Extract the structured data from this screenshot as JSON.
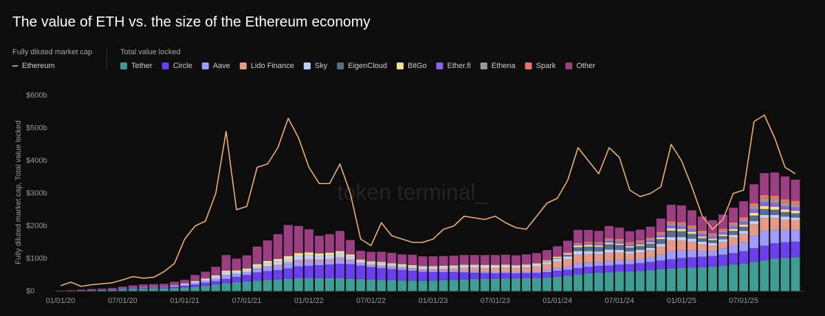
{
  "chart_data": {
    "type": "bar",
    "stacked": true,
    "title": "The value of ETH vs. the size of the Ethereum economy",
    "legend_titles": [
      "Fully diluted market cap",
      "Total value locked"
    ],
    "y_label": "Fully diluted market cap, Total value locked",
    "watermark": "token terminal_",
    "grid": false,
    "ylim": [
      0,
      600
    ],
    "yticks": [
      {
        "value": 0,
        "label": "$0"
      },
      {
        "value": 100,
        "label": "$100b"
      },
      {
        "value": 200,
        "label": "$200b"
      },
      {
        "value": 300,
        "label": "$300b"
      },
      {
        "value": 400,
        "label": "$400b"
      },
      {
        "value": 500,
        "label": "$500b"
      },
      {
        "value": 600,
        "label": "$600b"
      }
    ],
    "categories": [
      "01/01/20",
      null,
      null,
      null,
      null,
      null,
      "07/01/20",
      null,
      null,
      null,
      null,
      null,
      "01/01/21",
      null,
      null,
      null,
      null,
      null,
      "07/01/21",
      null,
      null,
      null,
      null,
      null,
      "01/01/22",
      null,
      null,
      null,
      null,
      null,
      "07/01/22",
      null,
      null,
      null,
      null,
      null,
      "01/01/23",
      null,
      null,
      null,
      null,
      null,
      "07/01/23",
      null,
      null,
      null,
      null,
      null,
      "01/01/24",
      null,
      null,
      null,
      null,
      null,
      "07/01/24",
      null,
      null,
      null,
      null,
      null,
      "01/01/25",
      null,
      null,
      null,
      null,
      null,
      "07/01/25",
      null,
      null,
      null,
      null,
      null
    ],
    "series": [
      {
        "name": "Tether",
        "color": "#3f9d93",
        "values": [
          1,
          1,
          2,
          3,
          4,
          5,
          6,
          7,
          8,
          9,
          9,
          10,
          12,
          14,
          17,
          20,
          25,
          28,
          30,
          33,
          35,
          36,
          38,
          40,
          40,
          40,
          40,
          40,
          38,
          37,
          36,
          35,
          34,
          33,
          33,
          32,
          33,
          34,
          35,
          36,
          37,
          38,
          38,
          39,
          39,
          40,
          40,
          42,
          45,
          48,
          52,
          55,
          57,
          58,
          60,
          60,
          62,
          65,
          68,
          70,
          72,
          73,
          74,
          75,
          78,
          82,
          85,
          90,
          95,
          100,
          102,
          104
        ]
      },
      {
        "name": "Circle",
        "color": "#6b3ff0",
        "values": [
          0,
          0,
          1,
          1,
          1,
          1,
          2,
          3,
          3,
          3,
          3,
          4,
          5,
          7,
          9,
          11,
          13,
          16,
          20,
          25,
          27,
          29,
          32,
          36,
          38,
          40,
          42,
          44,
          45,
          42,
          38,
          36,
          34,
          32,
          30,
          28,
          26,
          25,
          24,
          22,
          20,
          18,
          17,
          17,
          16,
          16,
          16,
          17,
          18,
          18,
          19,
          20,
          21,
          21,
          22,
          23,
          24,
          25,
          26,
          28,
          30,
          31,
          32,
          33,
          34,
          35,
          38,
          42,
          45,
          47,
          48,
          48
        ]
      },
      {
        "name": "Aave",
        "color": "#a09cff",
        "values": [
          0,
          0,
          0,
          0,
          0,
          0,
          0,
          0,
          1,
          1,
          1,
          2,
          3,
          5,
          6,
          8,
          10,
          8,
          8,
          10,
          12,
          13,
          14,
          15,
          15,
          13,
          13,
          14,
          11,
          6,
          6,
          6,
          6,
          6,
          5,
          5,
          5,
          5,
          5,
          6,
          6,
          5,
          5,
          5,
          5,
          5,
          6,
          7,
          8,
          10,
          14,
          13,
          12,
          14,
          13,
          12,
          13,
          14,
          18,
          25,
          24,
          22,
          18,
          16,
          20,
          24,
          28,
          38,
          45,
          42,
          38,
          36
        ]
      },
      {
        "name": "Lido Finance",
        "color": "#e59a86",
        "values": [
          0,
          0,
          0,
          0,
          0,
          0,
          0,
          0,
          0,
          0,
          0,
          0,
          0,
          0,
          0,
          0,
          1,
          1,
          1,
          2,
          3,
          4,
          5,
          6,
          6,
          5,
          5,
          6,
          4,
          2,
          2,
          3,
          3,
          3,
          3,
          3,
          4,
          5,
          6,
          8,
          9,
          10,
          11,
          11,
          11,
          12,
          14,
          17,
          20,
          23,
          28,
          26,
          24,
          26,
          24,
          20,
          21,
          22,
          25,
          33,
          30,
          26,
          20,
          17,
          19,
          24,
          26,
          36,
          40,
          36,
          32,
          30
        ]
      },
      {
        "name": "Sky",
        "color": "#bfd2ff",
        "values": [
          0,
          0,
          0,
          0,
          0,
          0,
          1,
          1,
          1,
          1,
          1,
          2,
          3,
          4,
          4,
          6,
          8,
          6,
          6,
          7,
          9,
          10,
          11,
          12,
          12,
          11,
          11,
          12,
          9,
          6,
          6,
          6,
          6,
          6,
          6,
          6,
          6,
          6,
          6,
          6,
          6,
          6,
          6,
          6,
          6,
          6,
          6,
          7,
          8,
          8,
          10,
          9,
          8,
          9,
          8,
          7,
          7,
          7,
          8,
          10,
          10,
          9,
          8,
          7,
          8,
          8,
          8,
          9,
          9,
          9,
          9,
          8
        ]
      },
      {
        "name": "EigenCloud",
        "color": "#5a6d8c",
        "values": [
          0,
          0,
          0,
          0,
          0,
          0,
          0,
          0,
          0,
          0,
          0,
          0,
          0,
          0,
          0,
          0,
          0,
          0,
          0,
          0,
          0,
          0,
          0,
          0,
          0,
          0,
          0,
          0,
          0,
          0,
          0,
          0,
          0,
          0,
          0,
          0,
          0,
          0,
          0,
          0,
          0,
          0,
          0,
          0,
          0,
          0,
          0,
          1,
          2,
          5,
          12,
          14,
          14,
          16,
          15,
          12,
          12,
          13,
          15,
          20,
          18,
          15,
          11,
          9,
          10,
          12,
          13,
          17,
          18,
          16,
          14,
          13
        ]
      },
      {
        "name": "BitGo",
        "color": "#f3e48a",
        "values": [
          0,
          0,
          0,
          0,
          0,
          0,
          0,
          0,
          0,
          0,
          0,
          0,
          1,
          2,
          3,
          4,
          6,
          5,
          5,
          6,
          7,
          7,
          8,
          8,
          8,
          7,
          7,
          7,
          6,
          4,
          4,
          4,
          3,
          3,
          3,
          3,
          3,
          3,
          3,
          3,
          3,
          3,
          3,
          3,
          2,
          2,
          3,
          3,
          4,
          4,
          5,
          5,
          4,
          5,
          4,
          4,
          4,
          4,
          5,
          7,
          7,
          6,
          5,
          4,
          5,
          6,
          6,
          8,
          9,
          9,
          8,
          8
        ]
      },
      {
        "name": "Ether.fi",
        "color": "#8d62e6",
        "values": [
          0,
          0,
          0,
          0,
          0,
          0,
          0,
          0,
          0,
          0,
          0,
          0,
          0,
          0,
          0,
          0,
          0,
          0,
          0,
          0,
          0,
          0,
          0,
          0,
          0,
          0,
          0,
          0,
          0,
          0,
          0,
          0,
          0,
          0,
          0,
          0,
          0,
          0,
          0,
          0,
          0,
          0,
          0,
          0,
          0,
          0,
          0,
          0,
          0,
          1,
          3,
          4,
          5,
          6,
          6,
          5,
          5,
          6,
          7,
          9,
          9,
          8,
          7,
          6,
          7,
          8,
          9,
          11,
          12,
          11,
          10,
          10
        ]
      },
      {
        "name": "Ethena",
        "color": "#9a9a9a",
        "values": [
          0,
          0,
          0,
          0,
          0,
          0,
          0,
          0,
          0,
          0,
          0,
          0,
          0,
          0,
          0,
          0,
          0,
          0,
          0,
          0,
          0,
          0,
          0,
          0,
          0,
          0,
          0,
          0,
          0,
          0,
          0,
          0,
          0,
          0,
          0,
          0,
          0,
          0,
          0,
          0,
          0,
          0,
          0,
          0,
          0,
          0,
          0,
          0,
          0,
          0,
          1,
          2,
          2,
          3,
          3,
          3,
          3,
          3,
          4,
          5,
          5,
          5,
          5,
          5,
          5,
          5,
          6,
          9,
          11,
          12,
          11,
          10
        ]
      },
      {
        "name": "Spark",
        "color": "#e8736a",
        "values": [
          0,
          0,
          0,
          0,
          0,
          0,
          0,
          0,
          0,
          0,
          0,
          0,
          0,
          0,
          0,
          0,
          0,
          0,
          0,
          0,
          0,
          0,
          0,
          0,
          0,
          0,
          0,
          0,
          0,
          0,
          0,
          0,
          0,
          0,
          0,
          0,
          0,
          0,
          0,
          0,
          0,
          1,
          1,
          1,
          1,
          2,
          2,
          2,
          2,
          3,
          4,
          4,
          4,
          4,
          5,
          5,
          5,
          5,
          6,
          7,
          7,
          7,
          6,
          6,
          6,
          7,
          8,
          10,
          11,
          11,
          10,
          10
        ]
      },
      {
        "name": "Other",
        "color": "#9b3f82",
        "values": [
          1,
          2,
          2,
          3,
          3,
          4,
          5,
          7,
          8,
          8,
          9,
          11,
          11,
          18,
          21,
          26,
          48,
          36,
          40,
          54,
          63,
          76,
          95,
          83,
          71,
          54,
          57,
          62,
          44,
          27,
          29,
          31,
          32,
          30,
          32,
          30,
          30,
          30,
          30,
          30,
          30,
          30,
          30,
          30,
          30,
          30,
          30,
          30,
          31,
          35,
          40,
          36,
          34,
          38,
          35,
          33,
          33,
          34,
          41,
          51,
          51,
          46,
          43,
          40,
          43,
          45,
          49,
          58,
          67,
          71,
          70,
          65
        ]
      },
      {
        "name": "Ethereum",
        "type": "line",
        "color": "#f2b56b",
        "values": [
          17,
          28,
          15,
          20,
          23,
          26,
          35,
          45,
          40,
          43,
          60,
          85,
          160,
          200,
          215,
          300,
          490,
          250,
          260,
          380,
          390,
          440,
          530,
          470,
          380,
          330,
          330,
          390,
          300,
          160,
          140,
          210,
          170,
          160,
          150,
          150,
          160,
          190,
          200,
          230,
          225,
          220,
          230,
          210,
          195,
          190,
          230,
          270,
          285,
          340,
          440,
          400,
          360,
          440,
          410,
          310,
          290,
          300,
          320,
          450,
          400,
          320,
          230,
          190,
          220,
          300,
          310,
          520,
          540,
          470,
          380,
          360
        ]
      }
    ]
  }
}
